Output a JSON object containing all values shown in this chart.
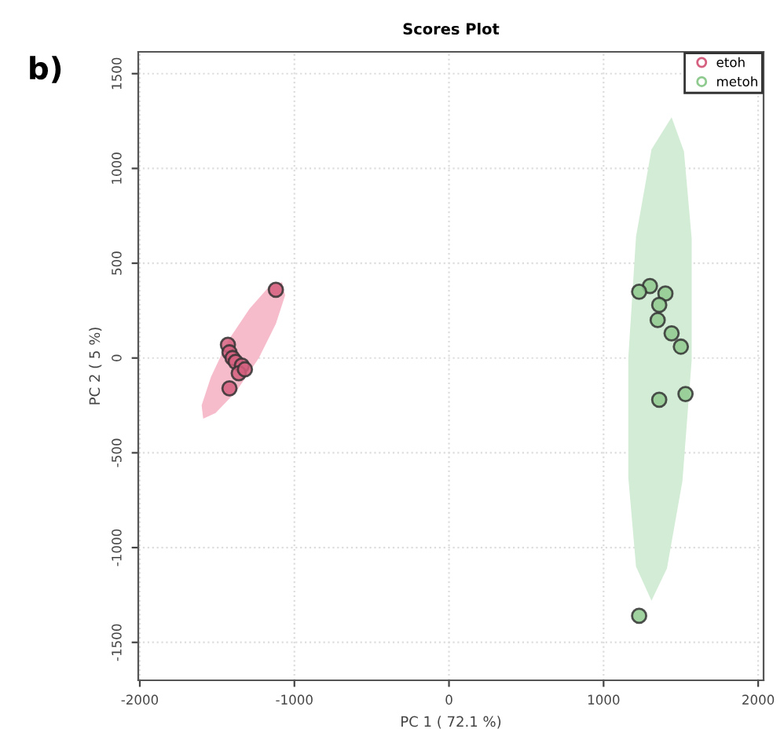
{
  "chart_data": {
    "type": "scatter",
    "title": "Scores Plot",
    "xlabel": "PC 1 ( 72.1 %)",
    "ylabel": "PC 2 ( 5 %)",
    "annotations": [
      "b)"
    ],
    "xlim": [
      -2010,
      2035
    ],
    "ylim": [
      -1700,
      1615
    ],
    "xticks": [
      -2000,
      -1000,
      0,
      1000,
      2000
    ],
    "yticks": [
      -1500,
      -1000,
      -500,
      0,
      500,
      1000,
      1500
    ],
    "grid": true,
    "legend": "top right",
    "series": [
      {
        "type": "area",
        "marker": "none",
        "color": "#f6bccb",
        "x": [
          -1080,
          -1060,
          -1120,
          -1230,
          -1380,
          -1510,
          -1590,
          -1600,
          -1540,
          -1430,
          -1290,
          -1160
        ],
        "values": [
          400,
          330,
          180,
          0,
          -180,
          -290,
          -320,
          -250,
          -100,
          90,
          260,
          380
        ]
      },
      {
        "type": "area",
        "marker": "none",
        "color": "#d3ecd5",
        "x": [
          1440,
          1520,
          1570,
          1570,
          1510,
          1410,
          1310,
          1210,
          1160,
          1160,
          1210,
          1310
        ],
        "values": [
          1270,
          1090,
          630,
          -10,
          -650,
          -1110,
          -1280,
          -1100,
          -630,
          0,
          640,
          1100
        ]
      },
      {
        "name": "etoh",
        "marker": "circle",
        "color": "#d5607f",
        "x": [
          -1120,
          -1430,
          -1420,
          -1400,
          -1380,
          -1340,
          -1360,
          -1420,
          -1320
        ],
        "values": [
          360,
          70,
          30,
          0,
          -20,
          -40,
          -80,
          -160,
          -60
        ]
      },
      {
        "name": "metoh",
        "marker": "circle",
        "color": "#8fca8f",
        "x": [
          1300,
          1230,
          1400,
          1360,
          1350,
          1440,
          1500,
          1530,
          1360,
          1230
        ],
        "values": [
          380,
          350,
          340,
          280,
          200,
          130,
          60,
          -190,
          -220,
          -1360
        ]
      }
    ]
  }
}
